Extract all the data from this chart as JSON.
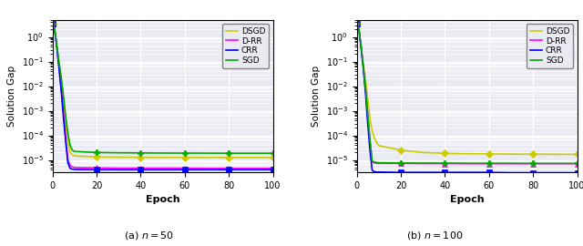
{
  "title_left": "(a) $n = 50$",
  "title_right": "(b) $n = 100$",
  "xlabel": "Epoch",
  "ylabel": "Solution Gap",
  "legend_labels": [
    "DSGD",
    "D-RR",
    "CRR",
    "SGD"
  ],
  "legend_colors": [
    "#cccc00",
    "#ff00ff",
    "#0000ff",
    "#00aa00"
  ],
  "legend_markers": [
    "D",
    "^",
    "s",
    "P"
  ],
  "xlim": [
    0,
    100
  ],
  "xticks": [
    0,
    20,
    40,
    60,
    80,
    100
  ],
  "background_color": "#eaeaf2",
  "left_epochs": [
    0,
    1,
    2,
    3,
    4,
    5,
    6,
    7,
    8,
    9,
    10,
    20,
    30,
    40,
    50,
    60,
    70,
    80,
    90,
    100
  ],
  "left": {
    "DSGD": [
      3.5,
      2.0,
      0.4,
      0.08,
      0.018,
      0.0028,
      0.00025,
      5.5e-05,
      2e-05,
      1.6e-05,
      1.45e-05,
      1.32e-05,
      1.28e-05,
      1.27e-05,
      1.26e-05,
      1.26e-05,
      1.25e-05,
      1.25e-05,
      1.25e-05,
      1.25e-05
    ],
    "D-RR": [
      3.5,
      2.0,
      0.4,
      0.06,
      0.008,
      0.0008,
      8e-05,
      1e-05,
      6e-06,
      5.2e-06,
      4.9e-06,
      4.7e-06,
      4.6e-06,
      4.6e-06,
      4.6e-06,
      4.6e-06,
      4.5e-06,
      4.5e-06,
      4.5e-06,
      4.5e-06
    ],
    "CRR": [
      3.5,
      2.0,
      0.35,
      0.05,
      0.006,
      0.0005,
      5.5e-05,
      7.5e-06,
      4.5e-06,
      4.2e-06,
      4.1e-06,
      4e-06,
      4e-06,
      4e-06,
      4e-06,
      4e-06,
      4e-06,
      4e-06,
      4e-06,
      4e-06
    ],
    "SGD": [
      3.5,
      2.0,
      0.45,
      0.09,
      0.022,
      0.004,
      0.0006,
      0.00012,
      4e-05,
      2.5e-05,
      2.2e-05,
      2e-05,
      1.95e-05,
      1.92e-05,
      1.9e-05,
      1.89e-05,
      1.88e-05,
      1.87e-05,
      1.87e-05,
      1.87e-05
    ]
  },
  "right_epochs": [
    0,
    1,
    2,
    3,
    4,
    5,
    6,
    7,
    8,
    9,
    10,
    20,
    30,
    40,
    50,
    60,
    70,
    80,
    90,
    100
  ],
  "right": {
    "DSGD": [
      3.5,
      2.0,
      0.4,
      0.08,
      0.018,
      0.003,
      0.0005,
      0.00015,
      8e-05,
      5e-05,
      3.8e-05,
      2.5e-05,
      2e-05,
      1.85e-05,
      1.78e-05,
      1.75e-05,
      1.72e-05,
      1.7e-05,
      1.69e-05,
      1.68e-05
    ],
    "D-RR": [
      3.5,
      2.0,
      0.4,
      0.06,
      0.008,
      0.0007,
      6e-05,
      8.5e-06,
      7.5e-06,
      7.3e-06,
      7.2e-06,
      7.2e-06,
      7.1e-06,
      7.1e-06,
      7e-06,
      7e-06,
      7e-06,
      7e-06,
      7e-06,
      7e-06
    ],
    "CRR": [
      3.5,
      2.0,
      0.35,
      0.05,
      0.005,
      0.0003,
      2.5e-05,
      3.8e-06,
      3.3e-06,
      3.2e-06,
      3.2e-06,
      3.1e-06,
      3.1e-06,
      3.1e-06,
      3.1e-06,
      3.1e-06,
      3e-06,
      3e-06,
      3e-06,
      3e-06
    ],
    "SGD": [
      3.5,
      2.0,
      0.4,
      0.06,
      0.008,
      0.0007,
      7e-05,
      9e-06,
      8.2e-06,
      7.9e-06,
      7.7e-06,
      7.5e-06,
      7.4e-06,
      7.4e-06,
      7.3e-06,
      7.3e-06,
      7.3e-06,
      7.2e-06,
      7.2e-06,
      7.2e-06
    ]
  },
  "marker_epochs": [
    0,
    20,
    40,
    60,
    80,
    100
  ],
  "marker_epoch_indices": [
    0,
    11,
    13,
    15,
    17,
    19
  ]
}
